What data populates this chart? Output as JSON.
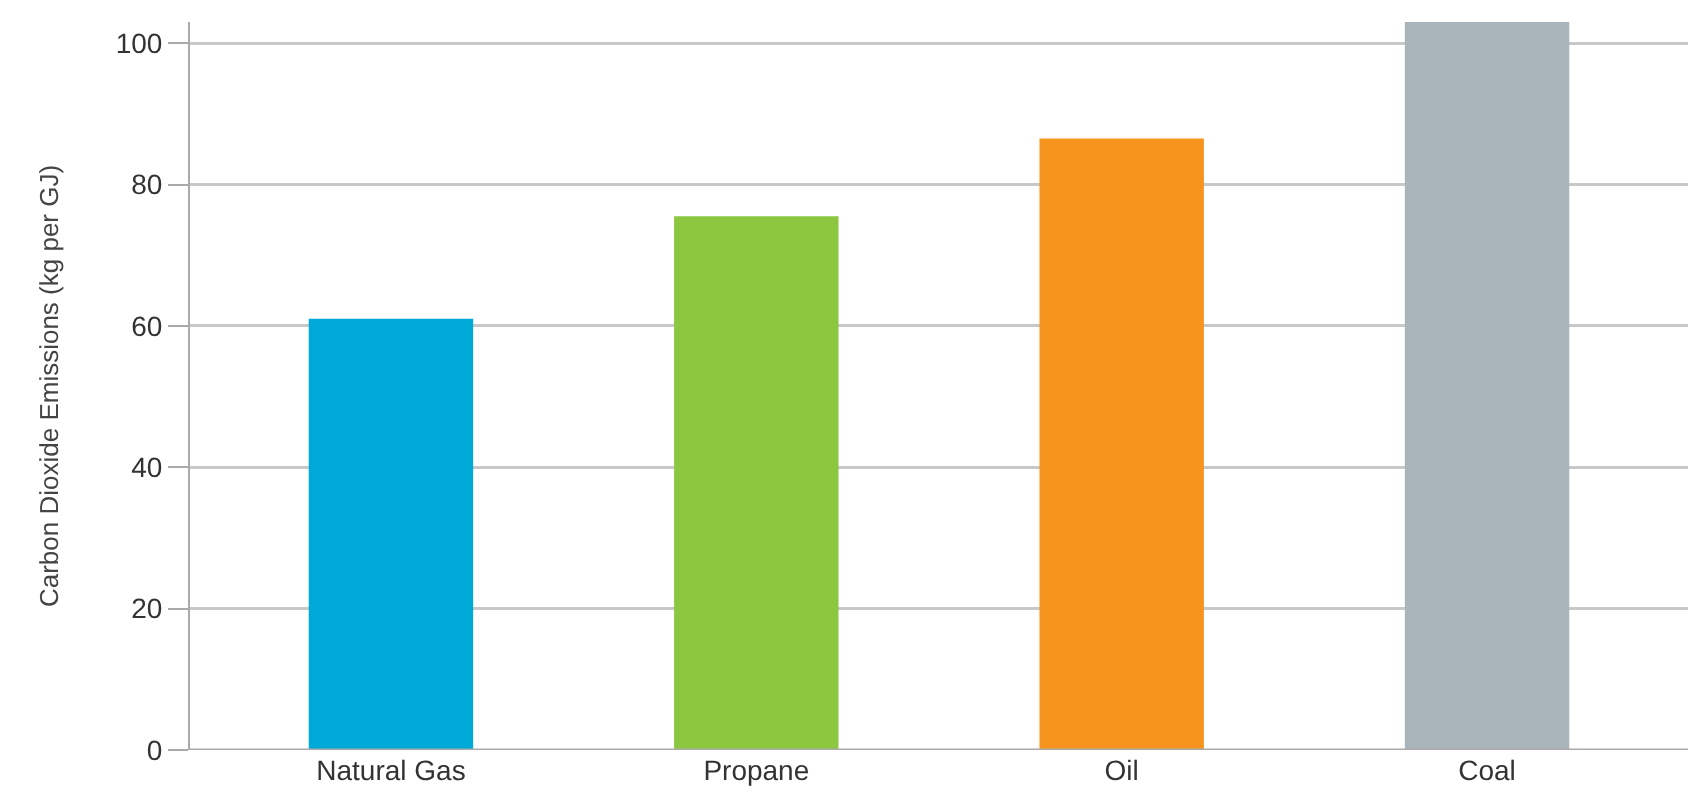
{
  "chart_data": {
    "type": "bar",
    "ylabel": "Carbon Dioxide Emissions (kg per GJ)",
    "categories": [
      "Natural Gas",
      "Propane",
      "Oil",
      "Coal"
    ],
    "values": [
      61,
      75.5,
      86.5,
      103
    ],
    "colors": [
      "#00aad8",
      "#8dc63f",
      "#f7941d",
      "#aab5bb"
    ],
    "ylim": [
      0,
      103
    ],
    "yticks": [
      0,
      20,
      40,
      60,
      80,
      100
    ],
    "grid": "y"
  }
}
